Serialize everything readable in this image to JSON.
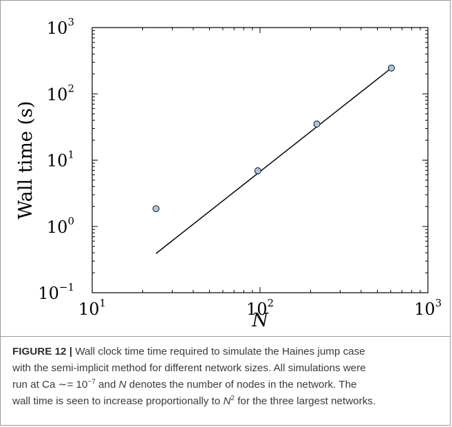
{
  "chart_data": {
    "type": "scatter",
    "xlabel": "N",
    "ylabel": "Wall time (s)",
    "xscale": "log",
    "yscale": "log",
    "xlim": [
      10,
      1000
    ],
    "ylim": [
      0.1,
      1000
    ],
    "xticks": [
      {
        "base": "10",
        "exp": "1",
        "value": 10
      },
      {
        "base": "10",
        "exp": "2",
        "value": 100
      },
      {
        "base": "10",
        "exp": "3",
        "value": 1000
      }
    ],
    "yticks": [
      {
        "base": "10",
        "exp": "−1",
        "value": 0.1
      },
      {
        "base": "10",
        "exp": "0",
        "value": 1
      },
      {
        "base": "10",
        "exp": "1",
        "value": 10
      },
      {
        "base": "10",
        "exp": "2",
        "value": 100
      },
      {
        "base": "10",
        "exp": "3",
        "value": 1000
      }
    ],
    "points": [
      {
        "x": 24,
        "y": 1.85
      },
      {
        "x": 97,
        "y": 6.9
      },
      {
        "x": 218,
        "y": 35
      },
      {
        "x": 606,
        "y": 245
      }
    ],
    "fit_line": {
      "x": [
        24,
        606
      ],
      "y": [
        0.39,
        245
      ]
    },
    "grid": false,
    "marker_color": "#a9c6e2"
  },
  "caption": {
    "label": "FIGURE 12 |",
    "line1": " Wall clock time time required to simulate the Haines jump case",
    "line2": "with the semi-implicit method for different network sizes. All simulations were",
    "line3_a": "run at Ca ",
    "line3_approx": "∼= 10",
    "line3_exp": "−7",
    "line3_b": " and ",
    "line3_N": "N",
    "line3_c": " denotes the number of nodes in the network. The",
    "line4_a": "wall time is seen to increase proportionally to ",
    "line4_N": "N",
    "line4_exp": "2",
    "line4_b": " for the three largest networks."
  }
}
